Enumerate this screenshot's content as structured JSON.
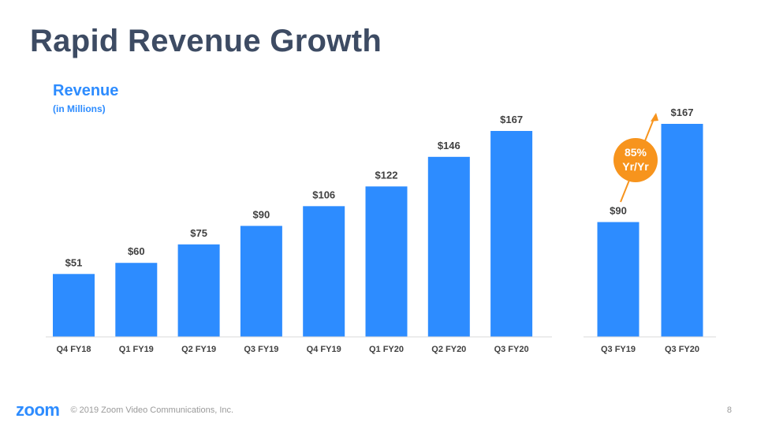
{
  "slide": {
    "title": "Rapid Revenue Growth",
    "page_number": "8"
  },
  "footer": {
    "logo": "zoom",
    "copyright": "© 2019 Zoom Video Communications, Inc."
  },
  "colors": {
    "bar": "#2d8cff",
    "accent": "#f7941d",
    "title": "#3d4b63",
    "axis": "#d9d9d9"
  },
  "chart_data": [
    {
      "type": "bar",
      "title": "Revenue",
      "subtitle": "(in Millions)",
      "categories": [
        "Q4 FY18",
        "Q1 FY19",
        "Q2 FY19",
        "Q3 FY19",
        "Q4 FY19",
        "Q1 FY20",
        "Q2 FY20",
        "Q3 FY20"
      ],
      "values": [
        51,
        60,
        75,
        90,
        106,
        122,
        146,
        167
      ],
      "labels": [
        "$51",
        "$60",
        "$75",
        "$90",
        "$106",
        "$122",
        "$146",
        "$167"
      ],
      "ylim": [
        0,
        167
      ],
      "grid": false,
      "xlabel": "",
      "ylabel": ""
    },
    {
      "type": "bar",
      "categories": [
        "Q3 FY19",
        "Q3 FY20"
      ],
      "values": [
        90,
        167
      ],
      "labels": [
        "$90",
        "$167"
      ],
      "ylim": [
        0,
        167
      ],
      "grid": false,
      "annotation": {
        "line1": "85%",
        "line2": "Yr/Yr"
      }
    }
  ]
}
